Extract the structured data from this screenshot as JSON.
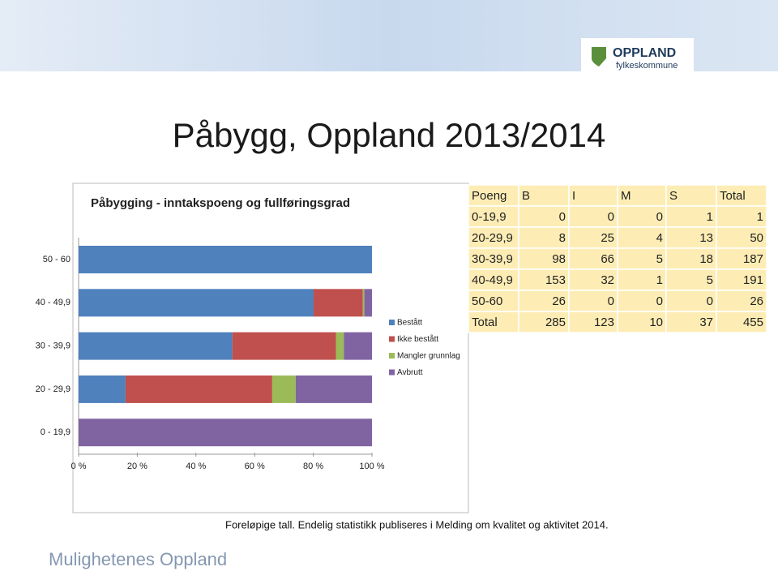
{
  "slide_title": "Påbygg, Oppland 2013/2014",
  "logo": {
    "name": "OPPLAND",
    "sub": "fylkeskommune"
  },
  "chart_data": {
    "type": "stacked_bar_horizontal",
    "title": "Påbygging - inntakspoeng og fullføringsgrad",
    "categories": [
      "0 - 19,9",
      "20 - 29,9",
      "30 - 39,9",
      "40 - 49,9",
      "50 - 60"
    ],
    "series": [
      {
        "name": "Bestått",
        "color": "#4f81bd",
        "values": [
          0,
          16,
          52.4,
          80.1,
          100
        ]
      },
      {
        "name": "Ikke bestått",
        "color": "#c0504d",
        "values": [
          0,
          50,
          35.3,
          16.8,
          0
        ]
      },
      {
        "name": "Mangler grunnlag",
        "color": "#9bbb59",
        "values": [
          0,
          8,
          2.7,
          0.5,
          0
        ]
      },
      {
        "name": "Avbrutt",
        "color": "#8064a2",
        "values": [
          100,
          26,
          9.6,
          2.6,
          0
        ]
      }
    ],
    "xlim": [
      0,
      100
    ],
    "xticks": [
      {
        "value": 0,
        "label": "0 %"
      },
      {
        "value": 20,
        "label": "20 %"
      },
      {
        "value": 40,
        "label": "40 %"
      },
      {
        "value": 60,
        "label": "60 %"
      },
      {
        "value": 80,
        "label": "80 %"
      },
      {
        "value": 100,
        "label": "100 %"
      }
    ],
    "legend": "right"
  },
  "table": {
    "header": [
      "Poeng",
      "B",
      "I",
      "M",
      "S",
      "Total"
    ],
    "rows": [
      [
        "0-19,9",
        0,
        0,
        0,
        1,
        1
      ],
      [
        "20-29,9",
        8,
        25,
        4,
        13,
        50
      ],
      [
        "30-39,9",
        98,
        66,
        5,
        18,
        187
      ],
      [
        "40-49,9",
        153,
        32,
        1,
        5,
        191
      ],
      [
        "50-60",
        26,
        0,
        0,
        0,
        26
      ],
      [
        "Total",
        285,
        123,
        10,
        37,
        455
      ]
    ]
  },
  "footnote": "Foreløpige tall. Endelig statistikk publiseres i Melding om kvalitet og aktivitet 2014.",
  "footer": "Mulighetenes Oppland"
}
